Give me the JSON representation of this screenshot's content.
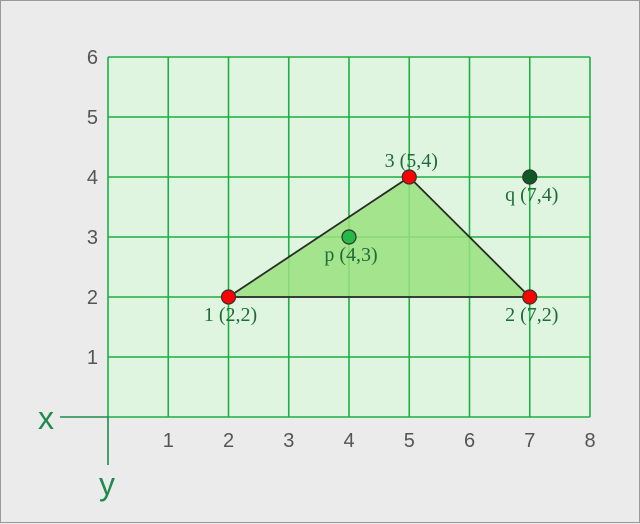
{
  "chart_data": {
    "type": "scatter",
    "title": "",
    "xlabel": "x",
    "ylabel": "y",
    "xlim": [
      0,
      8
    ],
    "ylim": [
      0,
      6
    ],
    "grid": true,
    "x_ticks": [
      "1",
      "2",
      "3",
      "4",
      "5",
      "6",
      "7",
      "8"
    ],
    "y_ticks": [
      "1",
      "2",
      "3",
      "4",
      "5",
      "6"
    ],
    "triangle_vertex_ids": [
      "v1",
      "v2",
      "v3"
    ],
    "points": [
      {
        "id": "v1",
        "label": "1 (2,2)",
        "x": 2,
        "y": 2,
        "color": "#ff0000",
        "label_pos": "below"
      },
      {
        "id": "v2",
        "label": "2 (7,2)",
        "x": 7,
        "y": 2,
        "color": "#ff0000",
        "label_pos": "below"
      },
      {
        "id": "v3",
        "label": "3 (5,4)",
        "x": 5,
        "y": 4,
        "color": "#ff0000",
        "label_pos": "above"
      },
      {
        "id": "p",
        "label": "p (4,3)",
        "x": 4,
        "y": 3,
        "color": "#22bb44",
        "label_pos": "below"
      },
      {
        "id": "q",
        "label": "q (7,4)",
        "x": 7,
        "y": 4,
        "color": "#0d5a24",
        "label_pos": "below"
      }
    ],
    "colors": {
      "plot_background": "#dff5df",
      "grid": "#1fae45",
      "triangle_fill": "#99e07f",
      "triangle_stroke": "#2a2a2a",
      "axis": "#1f8a4c"
    }
  }
}
